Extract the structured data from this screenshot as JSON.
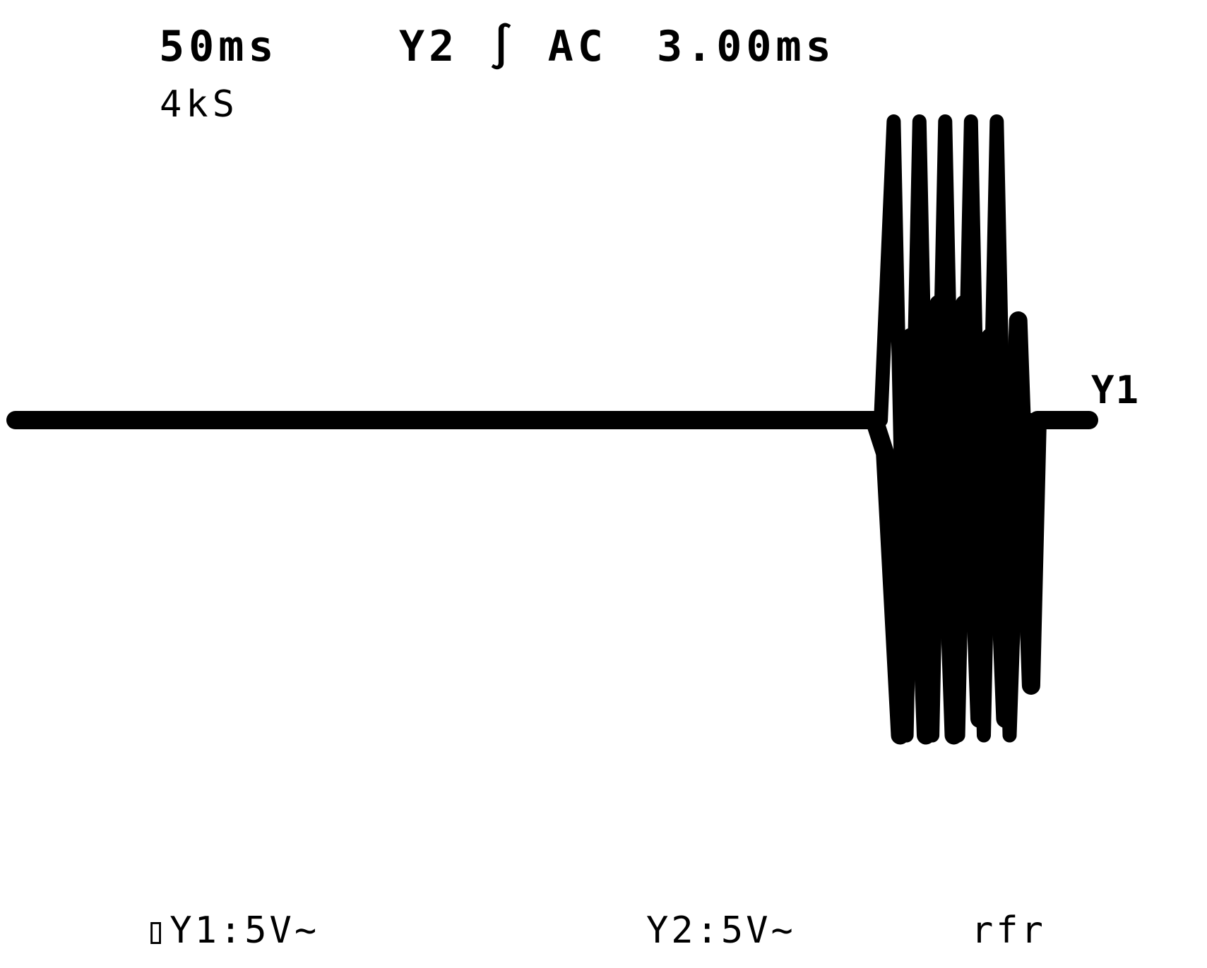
{
  "readouts": {
    "timebase": "50ms",
    "sample_rate": "4kS",
    "trigger": "Y2 ∫ AC",
    "trigger_time": "3.00ms",
    "ch1_scale": "▯Y1:5V~",
    "ch2_scale": "Y2:5V~",
    "mode": "rfr",
    "trace_marker": "Y1"
  },
  "colors": {
    "trace": "#000000",
    "background": "#ffffff"
  },
  "chart_data": {
    "type": "line",
    "title": "",
    "xlabel": "",
    "ylabel": "",
    "grid": false,
    "xlim": [
      0,
      500
    ],
    "ylim": [
      -20,
      20
    ],
    "series": [
      {
        "name": "Y1",
        "x": [
          0,
          400,
          405,
          412,
          417,
          424,
          430,
          437,
          442,
          449,
          454,
          461,
          467,
          473,
          476,
          500
        ],
        "values": [
          0,
          0,
          -2,
          -19,
          5,
          -19,
          7,
          -19,
          7,
          -18,
          5,
          -18,
          6,
          -16,
          0,
          0
        ]
      },
      {
        "name": "Y2",
        "x": [
          0,
          403,
          409,
          415,
          421,
          427,
          433,
          439,
          445,
          451,
          457,
          463,
          468,
          500
        ],
        "values": [
          0,
          0,
          18,
          -19,
          18,
          -19,
          18,
          -19,
          18,
          -19,
          18,
          -19,
          0,
          0
        ]
      }
    ]
  }
}
